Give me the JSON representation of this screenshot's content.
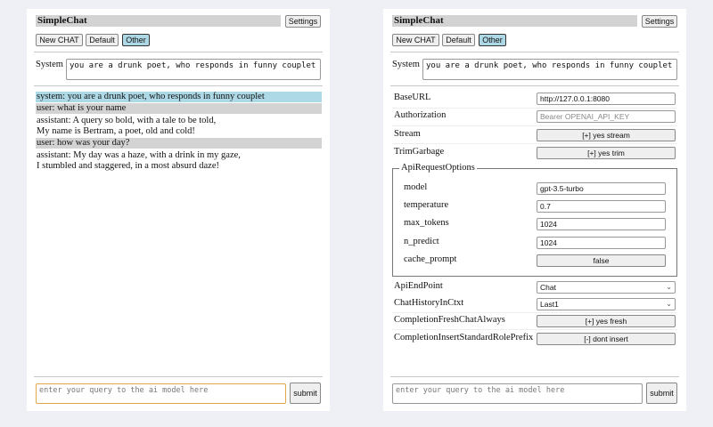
{
  "app_title": "SimpleChat",
  "settings_label": "Settings",
  "buttons": {
    "new_chat": "New CHAT",
    "default": "Default",
    "other": "Other"
  },
  "system_label": "System",
  "system_prompt": "you are a drunk poet, who responds in funny couplet",
  "messages": [
    {
      "role": "system",
      "text": "system: you are a drunk poet, who responds in funny couplet"
    },
    {
      "role": "user",
      "text": "user: what is your name"
    },
    {
      "role": "assistant",
      "lines": [
        "assistant: A query so bold, with a tale to be told,",
        "My name is Bertram, a poet, old and cold!"
      ]
    },
    {
      "role": "user",
      "text": "user: how was your day?"
    },
    {
      "role": "assistant",
      "lines": [
        "assistant: My day was a haze, with a drink in my gaze,",
        "I stumbled and staggered, in a most absurd daze!"
      ]
    }
  ],
  "query_placeholder": "enter your query to the ai model here",
  "submit_label": "submit",
  "settings": {
    "base_url": {
      "label": "BaseURL",
      "value": "http://127.0.0.1:8080"
    },
    "authorization": {
      "label": "Authorization",
      "placeholder": "Bearer OPENAI_API_KEY"
    },
    "stream": {
      "label": "Stream",
      "value": "[+] yes stream"
    },
    "trim_garbage": {
      "label": "TrimGarbage",
      "value": "[+] yes trim"
    },
    "api_request_options": {
      "legend": "ApiRequestOptions",
      "model": {
        "label": "model",
        "value": "gpt-3.5-turbo"
      },
      "temperature": {
        "label": "temperature",
        "value": "0.7"
      },
      "max_tokens": {
        "label": "max_tokens",
        "value": "1024"
      },
      "n_predict": {
        "label": "n_predict",
        "value": "1024"
      },
      "cache_prompt": {
        "label": "cache_prompt",
        "value": "false"
      }
    },
    "api_endpoint": {
      "label": "ApiEndPoint",
      "value": "Chat"
    },
    "chat_history": {
      "label": "ChatHistoryInCtxt",
      "value": "Last1"
    },
    "fresh_chat": {
      "label": "CompletionFreshChatAlways",
      "value": "[+] yes fresh"
    },
    "role_prefix": {
      "label": "CompletionInsertStandardRolePrefix",
      "value": "[-] dont insert"
    }
  }
}
